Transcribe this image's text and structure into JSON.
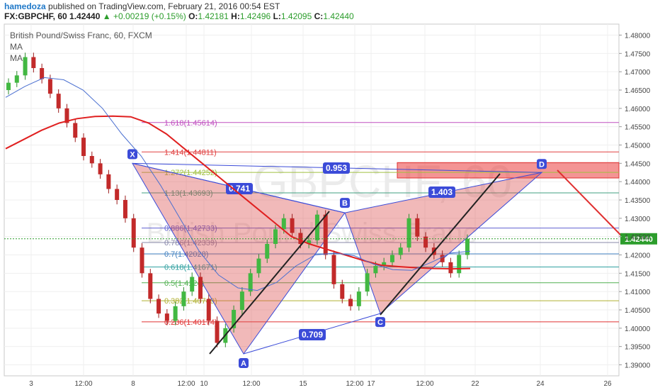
{
  "header": {
    "author": "hamedoza",
    "published": "published on TradingView.com, February 21, 2016 00:54 EST",
    "symbol": "FX:GBPCHF, 60",
    "last": "1.42440",
    "arrow": "▲",
    "change": "+0.00219 (+0.15%)",
    "o_label": "O:",
    "o": "1.42181",
    "h_label": "H:",
    "h": "1.42496",
    "l_label": "L:",
    "l": "1.42095",
    "c_label": "C:",
    "c": "1.42440"
  },
  "legend": {
    "title": "British Pound/Swiss Franc, 60, FXCM",
    "ma1": "MA",
    "ma2": "MA"
  },
  "watermark": {
    "big": "GBPCHF, 60",
    "small": "British Pound/Swiss Franc"
  },
  "chart_data": {
    "type": "candlestick",
    "ylim": [
      1.387,
      1.483
    ],
    "y_ticks": [
      "1.48000",
      "1.47500",
      "1.47000",
      "1.46500",
      "1.46000",
      "1.45500",
      "1.45000",
      "1.44500",
      "1.44000",
      "1.43500",
      "1.43000",
      "1.42500",
      "1.42000",
      "1.41500",
      "1.41000",
      "1.40500",
      "1.40000",
      "1.39500",
      "1.39000"
    ],
    "x_ticks": [
      "3",
      "12:00",
      "8",
      "12:00",
      "10",
      "12:00",
      "15",
      "12:00",
      "17",
      "12:00",
      "22",
      "24",
      "26"
    ],
    "last_price": "1.42440",
    "fib_levels": [
      {
        "label": "1.618(1.45614)",
        "value": 1.45614,
        "color": "#c050c0"
      },
      {
        "label": "1.414(1.44811)",
        "value": 1.44811,
        "color": "#e04040"
      },
      {
        "label": "1.272(1.44252)",
        "value": 1.44252,
        "color": "#a0c040"
      },
      {
        "label": "1.13(1.43693)",
        "value": 1.43693,
        "color": "#40a080"
      },
      {
        "label": "0.886(1.42733)",
        "value": 1.42733,
        "color": "#6060d0"
      },
      {
        "label": "0.786(1.42339)",
        "value": 1.42339,
        "color": "#8888aa"
      },
      {
        "label": "0.7(1.42028)",
        "value": 1.42028,
        "color": "#4080c0"
      },
      {
        "label": "0.618(1.41671)",
        "value": 1.41671,
        "color": "#30a0a0"
      },
      {
        "label": "0.5(1.4124)",
        "value": 1.4124,
        "color": "#50b050"
      },
      {
        "label": "0.382(1.40749)",
        "value": 1.40749,
        "color": "#b0b030"
      },
      {
        "label": "0.236(1.40174)",
        "value": 1.40174,
        "color": "#e03030"
      }
    ],
    "pattern_points": [
      {
        "name": "X",
        "value": 1.445
      },
      {
        "name": "A",
        "value": 1.393
      },
      {
        "name": "B",
        "value": 1.4315
      },
      {
        "name": "C",
        "value": 1.404
      },
      {
        "name": "D",
        "value": 1.4425
      }
    ],
    "ratios": [
      "0.741",
      "0.709",
      "1.403",
      "0.953"
    ],
    "zone": [
      1.441,
      1.4452
    ],
    "ma_red": [
      1.449,
      1.4515,
      1.454,
      1.456,
      1.4572,
      1.4578,
      1.4579,
      1.4577,
      1.456,
      1.453,
      1.449,
      1.445,
      1.441,
      1.437,
      1.433,
      1.429,
      1.425,
      1.423,
      1.4215,
      1.42,
      1.4185,
      1.4172,
      1.4168,
      1.4165,
      1.4163,
      1.4162,
      1.4163
    ],
    "ma_blue": [
      1.463,
      1.466,
      1.4684,
      1.4678,
      1.465,
      1.46,
      1.453,
      1.447,
      1.439,
      1.43,
      1.421,
      1.4145,
      1.411,
      1.4103,
      1.4125,
      1.417,
      1.42,
      1.4205,
      1.4198,
      1.4175,
      1.416,
      1.4158,
      1.418,
      1.4205,
      1.421
    ],
    "close": [
      1.467,
      1.469,
      1.474,
      1.471,
      1.468,
      1.464,
      1.46,
      1.456,
      1.452,
      1.447,
      1.445,
      1.442,
      1.438,
      1.435,
      1.43,
      1.422,
      1.415,
      1.408,
      1.404,
      1.402,
      1.406,
      1.41,
      1.414,
      1.408,
      1.402,
      1.396,
      1.4,
      1.405,
      1.41,
      1.415,
      1.419,
      1.423,
      1.427,
      1.43,
      1.426,
      1.423,
      1.424,
      1.431,
      1.42,
      1.412,
      1.408,
      1.406,
      1.41,
      1.415,
      1.417,
      1.418,
      1.42,
      1.422,
      1.43,
      1.425,
      1.422,
      1.42,
      1.418,
      1.415,
      1.42,
      1.4244
    ]
  }
}
